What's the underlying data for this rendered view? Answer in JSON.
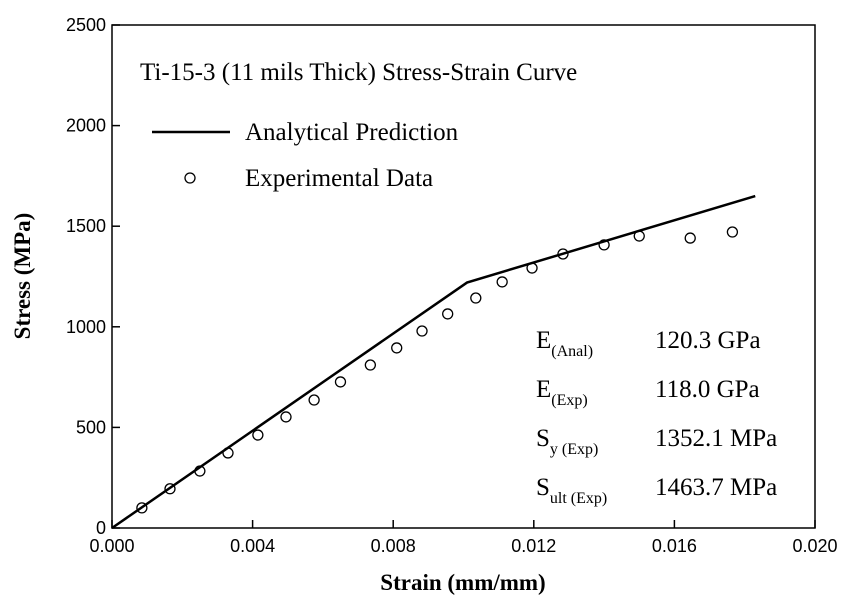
{
  "chart_data": {
    "type": "line",
    "title": "Ti-15-3 (11 mils Thick) Stress-Strain Curve",
    "xlabel": "Strain (mm/mm)",
    "ylabel": "Stress (MPa)",
    "xlim": [
      0,
      0.02
    ],
    "ylim": [
      0,
      2500
    ],
    "xticks": [
      {
        "value": 0,
        "label": "0.000"
      },
      {
        "value": 0.004,
        "label": "0.004"
      },
      {
        "value": 0.008,
        "label": "0.008"
      },
      {
        "value": 0.012,
        "label": "0.012"
      },
      {
        "value": 0.016,
        "label": "0.016"
      },
      {
        "value": 0.02,
        "label": "0.020"
      }
    ],
    "yticks": [
      0,
      500,
      1000,
      1500,
      2000,
      2500
    ],
    "series": [
      {
        "name": "Analytical Prediction",
        "type": "line",
        "color": "#000000",
        "x": [
          0,
          0.0101,
          0.0183
        ],
        "values": [
          0,
          1220,
          1650
        ]
      },
      {
        "name": "Experimental Data",
        "type": "scatter",
        "color": "#000000",
        "x": [
          0.00085,
          0.00165,
          0.0025,
          0.0033,
          0.00415,
          0.00495,
          0.00575,
          0.0065,
          0.00735,
          0.0081,
          0.00882,
          0.00955,
          0.01035,
          0.0111,
          0.01195,
          0.01283,
          0.014,
          0.015,
          0.01645,
          0.01765
        ],
        "values": [
          100,
          195,
          283,
          373,
          462,
          552,
          636,
          726,
          810,
          895,
          979,
          1064,
          1143,
          1223,
          1292,
          1362,
          1407,
          1451,
          1441,
          1471
        ]
      }
    ],
    "annotations": [
      {
        "symbol": "E",
        "subscript": "(Anal)",
        "text": "120.3 GPa"
      },
      {
        "symbol": "E",
        "subscript": "(Exp)",
        "text": "118.0 GPa"
      },
      {
        "symbol": "S",
        "subscript": "y (Exp)",
        "text": "1352.1 MPa"
      },
      {
        "symbol": "S",
        "subscript": "ult (Exp)",
        "text": "1463.7 MPa"
      }
    ]
  }
}
